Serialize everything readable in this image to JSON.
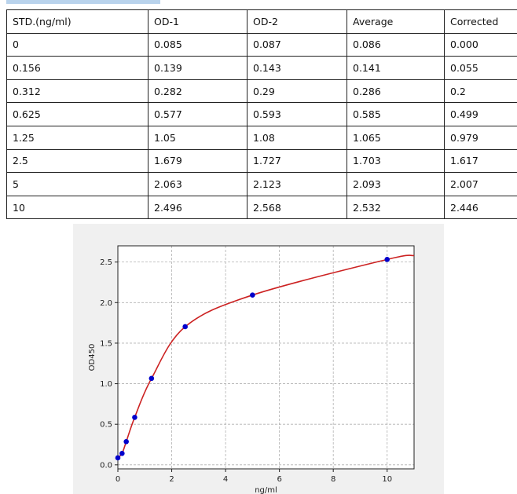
{
  "table": {
    "headers": [
      "STD.(ng/ml)",
      "OD-1",
      "OD-2",
      "Average",
      "Corrected"
    ],
    "rows": [
      [
        "0",
        "0.085",
        "0.087",
        "0.086",
        "0.000"
      ],
      [
        "0.156",
        "0.139",
        "0.143",
        "0.141",
        "0.055"
      ],
      [
        "0.312",
        "0.282",
        "0.29",
        "0.286",
        "0.2"
      ],
      [
        "0.625",
        "0.577",
        "0.593",
        "0.585",
        "0.499"
      ],
      [
        "1.25",
        "1.05",
        "1.08",
        "1.065",
        "0.979"
      ],
      [
        "2.5",
        "1.679",
        "1.727",
        "1.703",
        "1.617"
      ],
      [
        "5",
        "2.063",
        "2.123",
        "2.093",
        "2.007"
      ],
      [
        "10",
        "2.496",
        "2.568",
        "2.532",
        "2.446"
      ]
    ]
  },
  "chart_data": {
    "type": "scatter",
    "title": "",
    "xlabel": "ng/ml",
    "ylabel": "OD450",
    "xlim": [
      0,
      11
    ],
    "ylim": [
      -0.05,
      2.7
    ],
    "xticks": [
      0,
      2,
      4,
      6,
      8,
      10
    ],
    "yticks": [
      0.0,
      0.5,
      1.0,
      1.5,
      2.0,
      2.5
    ],
    "grid": true,
    "points": {
      "x": [
        0,
        0.156,
        0.312,
        0.625,
        1.25,
        2.5,
        5,
        10
      ],
      "y": [
        0.086,
        0.141,
        0.286,
        0.585,
        1.065,
        1.703,
        2.093,
        2.532
      ]
    },
    "colors": {
      "points": "#0000cc",
      "curve": "#cc2222",
      "grid": "#b0b0b0"
    }
  }
}
